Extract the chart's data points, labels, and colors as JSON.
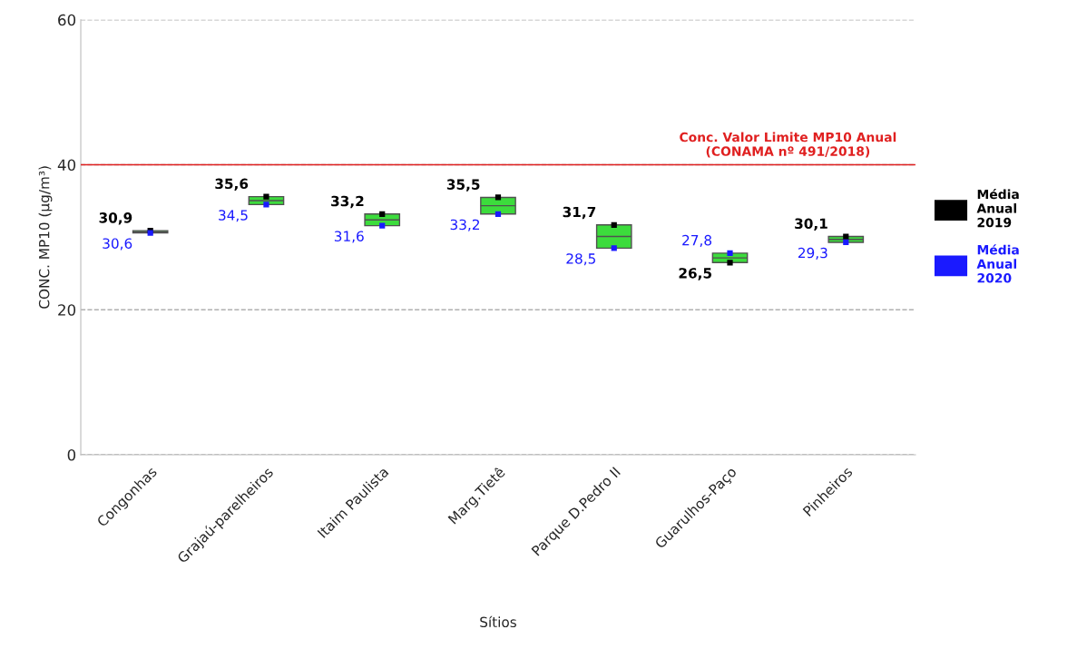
{
  "chart_data": {
    "type": "box",
    "xlabel": "Sítios",
    "ylabel": "CONC. MP10 (µg/m³)",
    "categories": [
      "Congonhas",
      "Grajaú-parelheiros",
      "Itaim Paulista",
      "Marg.Tietê",
      "Parque D.Pedro II",
      "Guarulhos-Paço",
      "Pinheiros"
    ],
    "boxes": [
      {
        "low": 30.6,
        "q1": 30.6,
        "median": 30.75,
        "q3": 30.9,
        "high": 30.9
      },
      {
        "low": 34.5,
        "q1": 34.5,
        "median": 35.05,
        "q3": 35.6,
        "high": 35.6
      },
      {
        "low": 31.6,
        "q1": 31.6,
        "median": 32.4,
        "q3": 33.2,
        "high": 33.2
      },
      {
        "low": 33.2,
        "q1": 33.2,
        "median": 34.35,
        "q3": 35.5,
        "high": 35.5
      },
      {
        "low": 28.5,
        "q1": 28.5,
        "median": 30.1,
        "q3": 31.7,
        "high": 31.7
      },
      {
        "low": 26.5,
        "q1": 26.5,
        "median": 27.15,
        "q3": 27.8,
        "high": 27.8
      },
      {
        "low": 29.3,
        "q1": 29.3,
        "median": 29.7,
        "q3": 30.1,
        "high": 30.1
      }
    ],
    "colors": [
      "#3cdc3c",
      "#3cdc3c",
      "#3cdc3c",
      "#3cdc3c",
      "#3cdc3c",
      "#3cdc3c",
      "#3cdc3c"
    ],
    "series": [
      {
        "name": "Média Anual 2019",
        "type": "scatter",
        "color": "#000000",
        "values": [
          30.9,
          35.6,
          33.2,
          35.5,
          31.7,
          26.5,
          30.1
        ],
        "value_labels": [
          "30,9",
          "35,6",
          "33,2",
          "35,5",
          "31,7",
          "26,5",
          "30,1"
        ]
      },
      {
        "name": "Média Anual 2020",
        "type": "scatter",
        "color": "#1a1aff",
        "values": [
          30.6,
          34.5,
          31.6,
          33.2,
          28.5,
          27.8,
          29.3
        ],
        "value_labels": [
          "30,6",
          "34,5",
          "31,6",
          "33,2",
          "28,5",
          "27,8",
          "29,3"
        ]
      }
    ],
    "marker": "square",
    "ref_lines": [
      {
        "axis": "y",
        "value": 40,
        "label": "Conc. Valor Limite MP10 Anual\n(CONAMA nº 491/2018)",
        "color": "#e02020",
        "line_style": "solid"
      }
    ],
    "ylim": [
      0,
      60
    ],
    "yticks": [
      0,
      20,
      40,
      60
    ],
    "grid": "y",
    "legend": "right"
  }
}
